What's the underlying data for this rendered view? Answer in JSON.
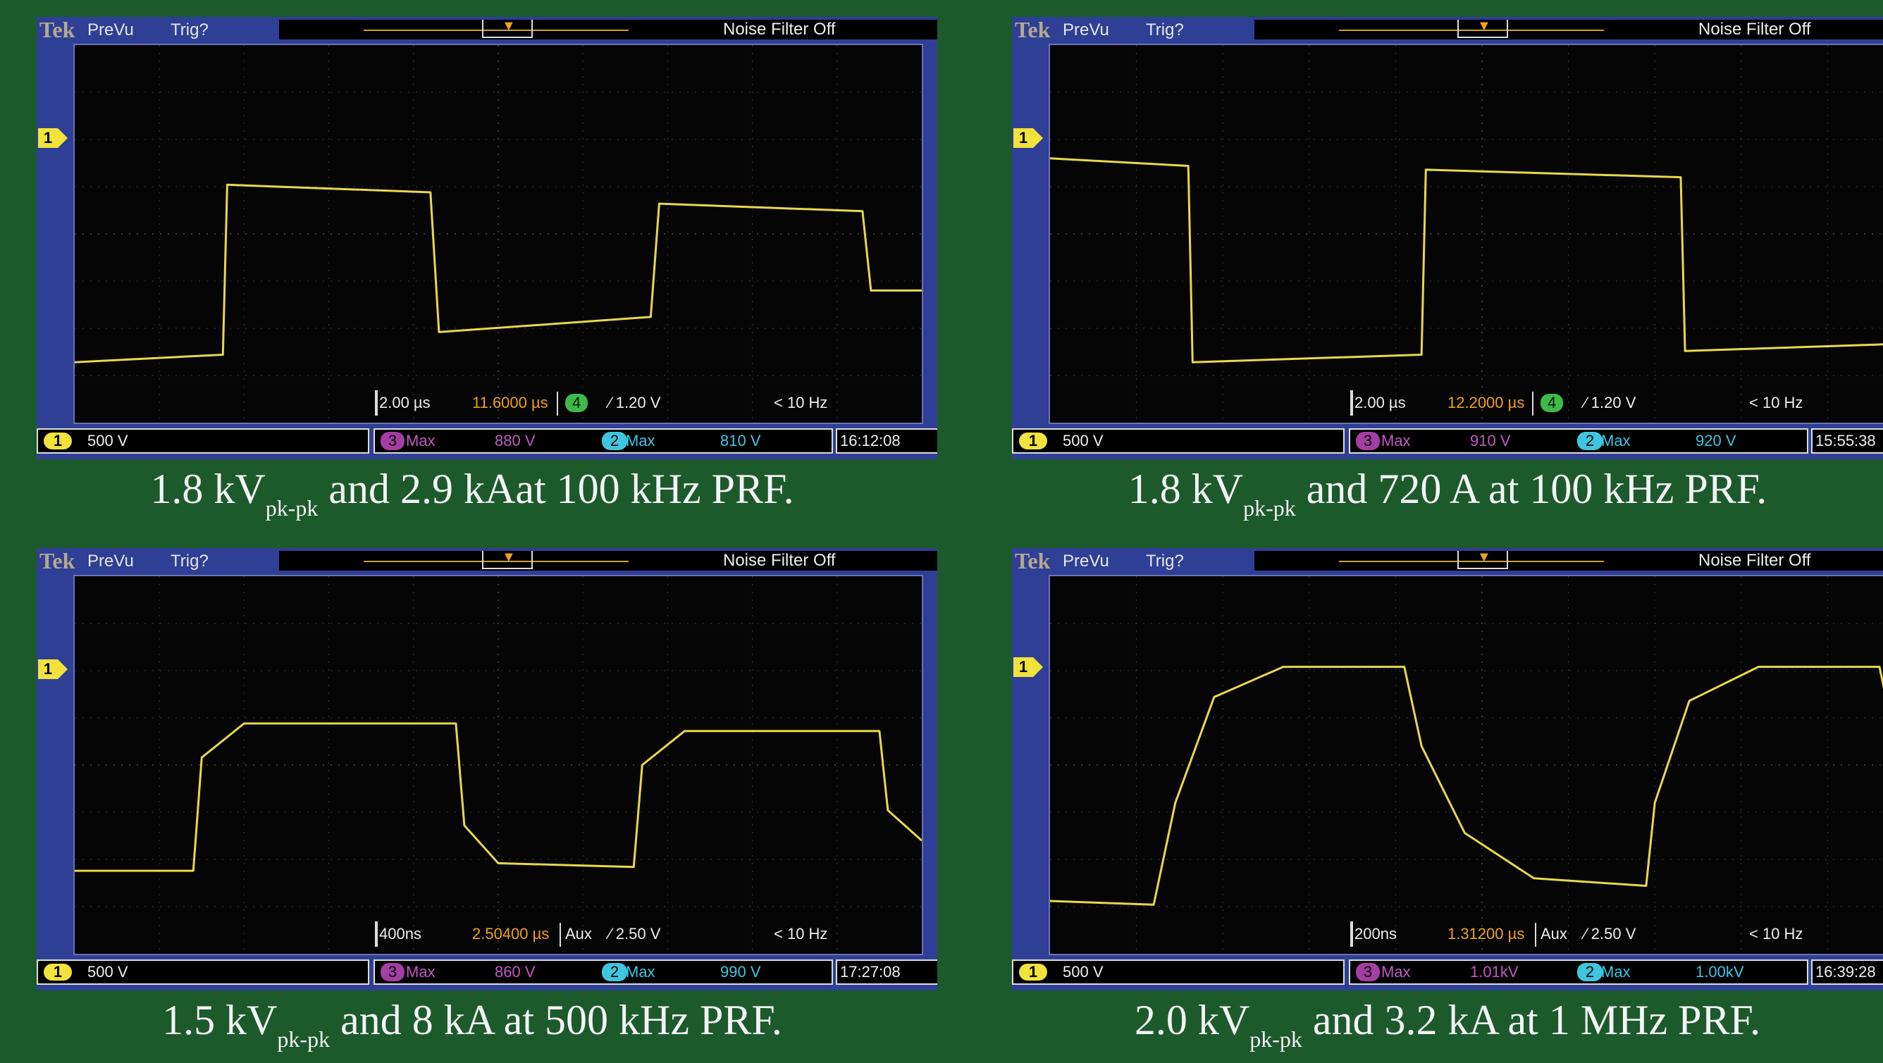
{
  "colors": {
    "background": "#1c5a2c",
    "trace": "#e8d84a",
    "frame": "#2e3f95",
    "ch1": "#f2e23c",
    "ch3": "#a33ea3",
    "ch2": "#3ec6e0",
    "ch4": "#3dbb4a",
    "trigger": "#f0a020"
  },
  "icons": {
    "ch1_marker": "1",
    "trigger_marker": "T"
  },
  "scopes": [
    {
      "brand": "Tek",
      "mode": "PreVu",
      "trigger_status": "Trig?",
      "noise_filter": "Noise Filter Off",
      "ch1_scale": "500 V",
      "ch1_label": "1",
      "timebase": "2.00 µs",
      "horizontal_position": "11.6000 µs",
      "trigger_source": "4",
      "trigger_level": "⁄ 1.20 V",
      "trigger_freq": "< 10 Hz",
      "meas3_label": "Max",
      "meas3_value": "880 V",
      "meas2_label": "Max",
      "meas2_value": "810 V",
      "clock": "16:12:08",
      "caption_pre": "1.8 kV",
      "caption_sub": "pk-pk",
      "caption_post": " and 2.9 kAat 100 kHz PRF."
    },
    {
      "brand": "Tek",
      "mode": "PreVu",
      "trigger_status": "Trig?",
      "noise_filter": "Noise Filter Off",
      "ch1_scale": "500 V",
      "ch1_label": "1",
      "timebase": "2.00 µs",
      "horizontal_position": "12.2000 µs",
      "trigger_source": "4",
      "trigger_level": "⁄ 1.20 V",
      "trigger_freq": "< 10 Hz",
      "meas3_label": "Max",
      "meas3_value": "910 V",
      "meas2_label": "Max",
      "meas2_value": "920 V",
      "clock": "15:55:38",
      "caption_pre": "1.8 kV",
      "caption_sub": "pk-pk",
      "caption_post": " and 720 A at 100 kHz PRF."
    },
    {
      "brand": "Tek",
      "mode": "PreVu",
      "trigger_status": "Trig?",
      "noise_filter": "Noise Filter Off",
      "ch1_scale": "500 V",
      "ch1_label": "1",
      "timebase": "400ns",
      "horizontal_position": "2.50400 µs",
      "trigger_source": "Aux",
      "trigger_level": "⁄ 2.50 V",
      "trigger_freq": "< 10 Hz",
      "meas3_label": "Max",
      "meas3_value": "860 V",
      "meas2_label": "Max",
      "meas2_value": "990 V",
      "clock": "17:27:08",
      "caption_pre": "1.5 kV",
      "caption_sub": "pk-pk",
      "caption_post": " and 8 kA at 500 kHz PRF."
    },
    {
      "brand": "Tek",
      "mode": "PreVu",
      "trigger_status": "Trig?",
      "noise_filter": "Noise Filter Off",
      "ch1_scale": "500 V",
      "ch1_label": "1",
      "timebase": "200ns",
      "horizontal_position": "1.31200 µs",
      "trigger_source": "Aux",
      "trigger_level": "⁄ 2.50 V",
      "trigger_freq": "< 10 Hz",
      "meas3_label": "Max",
      "meas3_value": "1.01kV",
      "meas2_label": "Max",
      "meas2_value": "1.00kV",
      "clock": "16:39:28",
      "caption_pre": "2.0 kV",
      "caption_sub": "pk-pk",
      "caption_post": " and 3.2 kA at 1 MHz PRF."
    }
  ],
  "chart_data": [
    {
      "type": "line",
      "name": "",
      "x_div": [
        0,
        0.5,
        0.6,
        1.7,
        1.75,
        2.5,
        2.7,
        4.4,
        4.5,
        5.0,
        5.2,
        6.8,
        6.9,
        7.5,
        8.1,
        9.4,
        9.45,
        10.0
      ],
      "y_div": [
        -2.3,
        -2.2,
        1.5,
        1.3,
        -1.7,
        -1.6,
        -1.5,
        -1.2,
        1.2,
        1.1,
        1.0,
        0.9,
        -1.1,
        -1.1,
        -1.1,
        -1.2,
        -1.2,
        -1.2
      ]
    }
  ]
}
